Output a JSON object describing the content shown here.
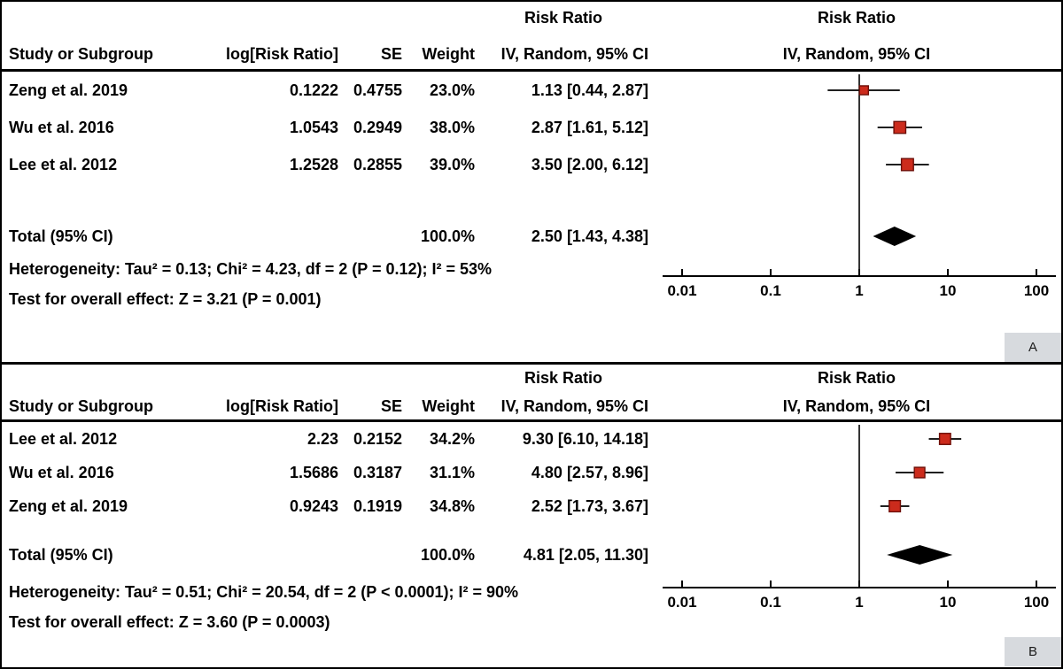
{
  "chart_data": [
    {
      "type": "forest",
      "panel_label": "A",
      "effect_title": "Risk Ratio",
      "plot_title": "Risk Ratio",
      "plot_subtitle": "IV, Random, 95% CI",
      "columns": {
        "study": "Study or Subgroup",
        "log_rr": "log[Risk Ratio]",
        "se": "SE",
        "weight": "Weight",
        "ci": "IV, Random, 95% CI"
      },
      "axis_scale": "log",
      "xlim": [
        0.01,
        100
      ],
      "x_ticks": [
        0.01,
        0.1,
        1,
        10,
        100
      ],
      "x_tick_labels": [
        "0.01",
        "0.1",
        "1",
        "10",
        "100"
      ],
      "marker_color": "#cc2b1c",
      "marker_stroke": "#6e0f08",
      "studies": [
        {
          "study": "Zeng et al. 2019",
          "log_rr": "0.1222",
          "se": "0.4755",
          "weight_text": "23.0%",
          "ci_text": "1.13 [0.44, 2.87]",
          "est": 1.13,
          "lo": 0.44,
          "hi": 2.87,
          "weight": 23.0
        },
        {
          "study": "Wu et al. 2016",
          "log_rr": "1.0543",
          "se": "0.2949",
          "weight_text": "38.0%",
          "ci_text": "2.87 [1.61, 5.12]",
          "est": 2.87,
          "lo": 1.61,
          "hi": 5.12,
          "weight": 38.0
        },
        {
          "study": "Lee et al. 2012",
          "log_rr": "1.2528",
          "se": "0.2855",
          "weight_text": "39.0%",
          "ci_text": "3.50 [2.00, 6.12]",
          "est": 3.5,
          "lo": 2.0,
          "hi": 6.12,
          "weight": 39.0
        }
      ],
      "total": {
        "label": "Total (95% CI)",
        "weight_text": "100.0%",
        "ci_text": "2.50 [1.43, 4.38]",
        "est": 2.5,
        "lo": 1.43,
        "hi": 4.38
      },
      "heterogeneity": "Heterogeneity: Tau² = 0.13; Chi² = 4.23, df = 2 (P = 0.12); I² = 53%",
      "overall_effect": "Test for overall effect: Z = 3.21 (P = 0.001)"
    },
    {
      "type": "forest",
      "panel_label": "B",
      "effect_title": "Risk Ratio",
      "plot_title": "Risk Ratio",
      "plot_subtitle": "IV, Random, 95% CI",
      "columns": {
        "study": "Study or Subgroup",
        "log_rr": "log[Risk Ratio]",
        "se": "SE",
        "weight": "Weight",
        "ci": "IV, Random, 95% CI"
      },
      "axis_scale": "log",
      "xlim": [
        0.01,
        100
      ],
      "x_ticks": [
        0.01,
        0.1,
        1,
        10,
        100
      ],
      "x_tick_labels": [
        "0.01",
        "0.1",
        "1",
        "10",
        "100"
      ],
      "marker_color": "#cc2b1c",
      "marker_stroke": "#6e0f08",
      "studies": [
        {
          "study": "Lee et al. 2012",
          "log_rr": "2.23",
          "se": "0.2152",
          "weight_text": "34.2%",
          "ci_text": "9.30 [6.10, 14.18]",
          "est": 9.3,
          "lo": 6.1,
          "hi": 14.18,
          "weight": 34.2
        },
        {
          "study": "Wu et al. 2016",
          "log_rr": "1.5686",
          "se": "0.3187",
          "weight_text": "31.1%",
          "ci_text": "4.80 [2.57, 8.96]",
          "est": 4.8,
          "lo": 2.57,
          "hi": 8.96,
          "weight": 31.1
        },
        {
          "study": "Zeng et al. 2019",
          "log_rr": "0.9243",
          "se": "0.1919",
          "weight_text": "34.8%",
          "ci_text": "2.52 [1.73, 3.67]",
          "est": 2.52,
          "lo": 1.73,
          "hi": 3.67,
          "weight": 34.8
        }
      ],
      "total": {
        "label": "Total (95% CI)",
        "weight_text": "100.0%",
        "ci_text": "4.81 [2.05, 11.30]",
        "est": 4.81,
        "lo": 2.05,
        "hi": 11.3
      },
      "heterogeneity": "Heterogeneity: Tau² = 0.51; Chi² = 20.54, df = 2 (P < 0.0001); I² = 90%",
      "overall_effect": "Test for overall effect: Z = 3.60 (P = 0.0003)"
    }
  ]
}
